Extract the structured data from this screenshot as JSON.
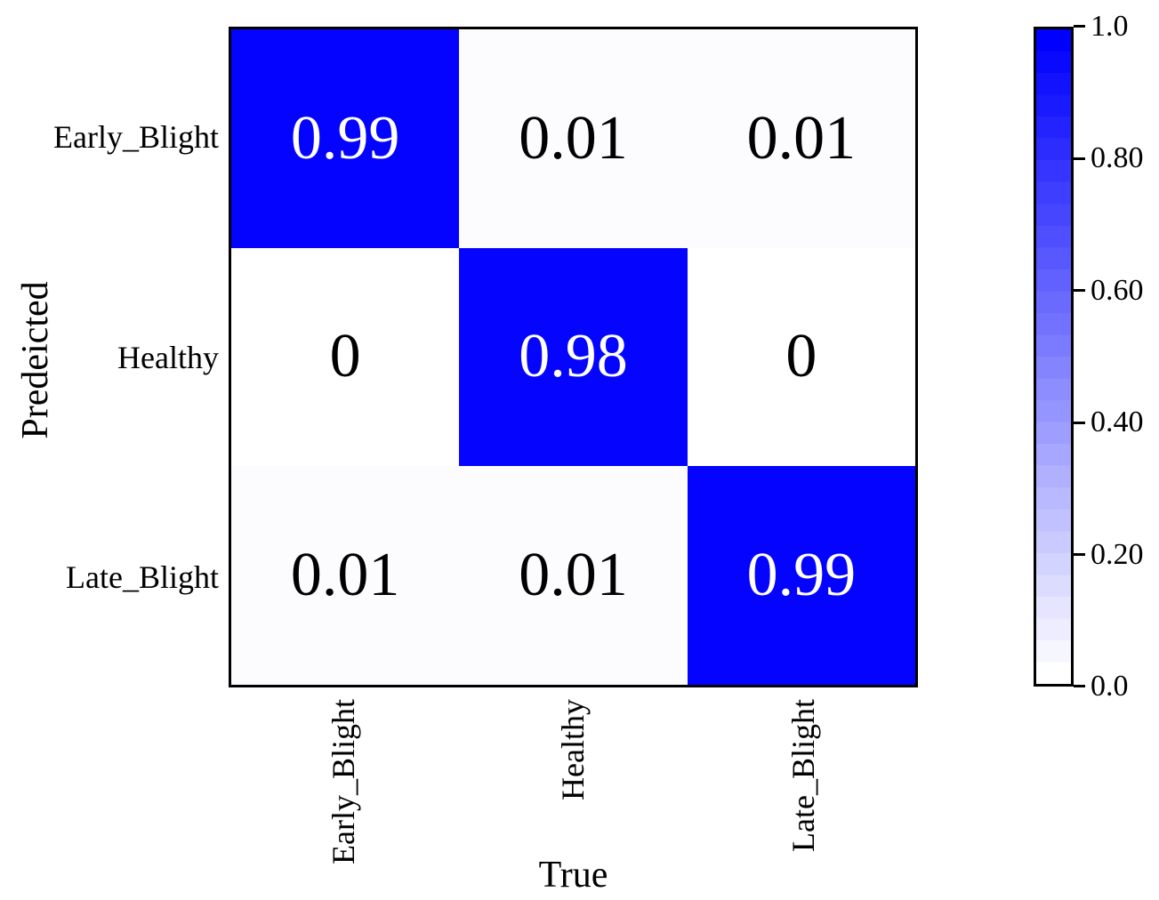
{
  "figure": {
    "background": "#ffffff",
    "text_color": "#000000",
    "border_color": "#000000"
  },
  "chart_data": {
    "type": "heatmap",
    "title": "",
    "xlabel": "True",
    "ylabel": "Predeicted",
    "x_categories": [
      "Early_Blight",
      "Healthy",
      "Late_Blight"
    ],
    "y_categories": [
      "Early_Blight",
      "Healthy",
      "Late_Blight"
    ],
    "matrix": [
      [
        0.99,
        0.01,
        0.01
      ],
      [
        0,
        0.98,
        0
      ],
      [
        0.01,
        0.01,
        0.99
      ]
    ],
    "cell_labels": [
      [
        "0.99",
        "0.01",
        "0.01"
      ],
      [
        "0",
        "0.98",
        "0"
      ],
      [
        "0.01",
        "0.01",
        "0.99"
      ]
    ],
    "value_range": [
      0,
      1
    ],
    "colormap": {
      "low": "#ffffff",
      "high": "#0000ff",
      "steps": 30
    },
    "colorbar": {
      "tick_labels": [
        "1.0",
        "0.80",
        "0.60",
        "0.40",
        "0.20",
        "0.0"
      ],
      "tick_values": [
        1.0,
        0.8,
        0.6,
        0.4,
        0.2,
        0.0
      ]
    },
    "grid": false,
    "legend": false
  }
}
